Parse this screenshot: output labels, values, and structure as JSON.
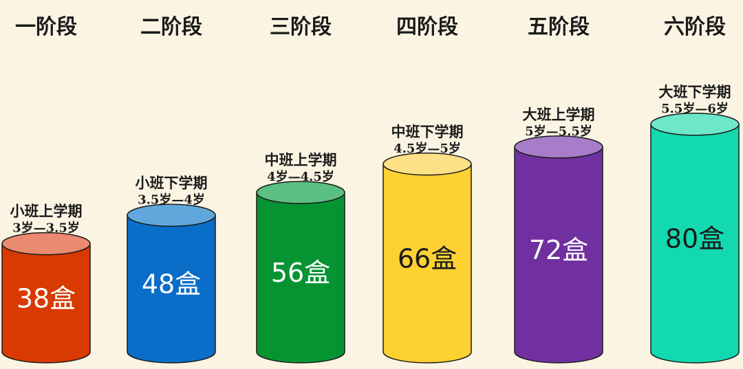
{
  "chart_data": {
    "type": "bar",
    "categories": [
      "一阶段",
      "二阶段",
      "三阶段",
      "四阶段",
      "五阶段",
      "六阶段"
    ],
    "semesters": [
      "小班上学期",
      "小班下学期",
      "中班上学期",
      "中班下学期",
      "大班上学期",
      "大班下学期"
    ],
    "ages": [
      "3岁—3.5岁",
      "3.5岁—4岁",
      "4岁—4.5岁",
      "4.5岁—5岁",
      "5岁—5.5岁",
      "5.5岁—6岁"
    ],
    "values": [
      38,
      48,
      56,
      66,
      72,
      80
    ],
    "value_labels": [
      "38盒",
      "48盒",
      "56盒",
      "66盒",
      "72盒",
      "80盒"
    ],
    "colors": {
      "body": [
        "#d83a02",
        "#0a6ec8",
        "#069432",
        "#fdd132",
        "#7030a0",
        "#12d9b0"
      ],
      "top": [
        "#ea8a70",
        "#60a8dc",
        "#5cbf82",
        "#fee086",
        "#a77cc8",
        "#6ee6c9"
      ],
      "label": [
        "#ffffff",
        "#ffffff",
        "#ffffff",
        "#1a1a1a",
        "#ffffff",
        "#1a1a1a"
      ]
    },
    "xlabel": "",
    "ylabel": "",
    "grid": false,
    "legend": "none"
  }
}
